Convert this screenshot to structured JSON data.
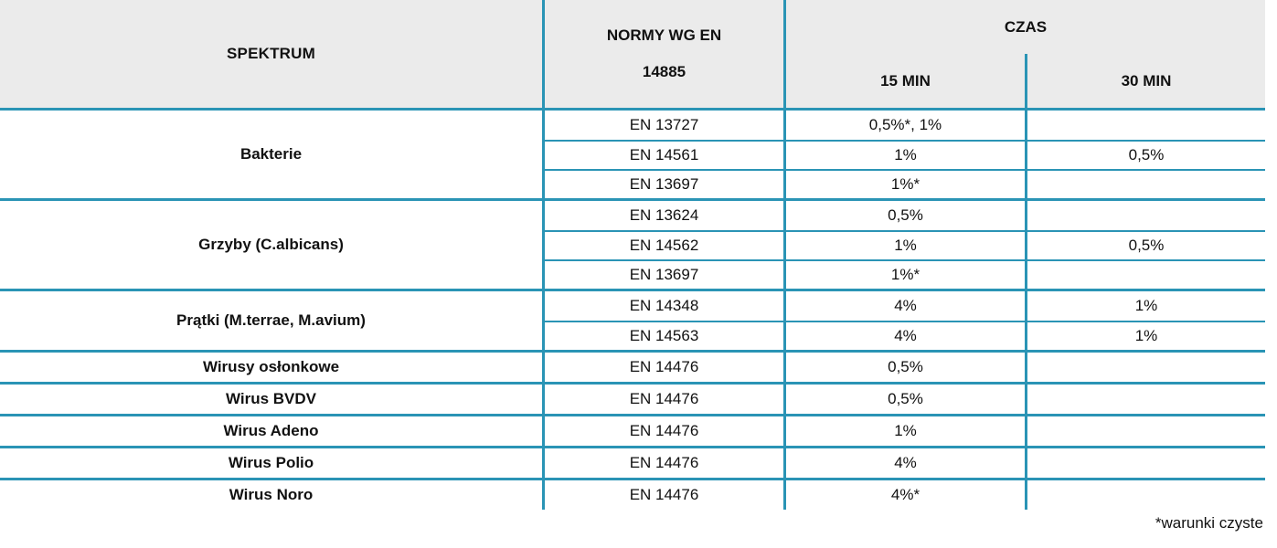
{
  "colors": {
    "accent": "#2A94B5",
    "header_bg": "#EBEBEB",
    "text": "#111111"
  },
  "header": {
    "spektrum": "SPEKTRUM",
    "normy_line1": "NORMY WG EN",
    "normy_line2": "14885",
    "czas": "CZAS",
    "min15": "15 MIN",
    "min30": "30 MIN"
  },
  "table": {
    "sections": [
      {
        "name": "Bakterie",
        "rows": [
          {
            "norm": "EN 13727",
            "min15": "0,5%*, 1%",
            "min30": ""
          },
          {
            "norm": "EN 14561",
            "min15": "1%",
            "min30": "0,5%"
          },
          {
            "norm": "EN 13697",
            "min15": "1%*",
            "min30": ""
          }
        ]
      },
      {
        "name": "Grzyby (C.albicans)",
        "rows": [
          {
            "norm": "EN 13624",
            "min15": "0,5%",
            "min30": ""
          },
          {
            "norm": "EN 14562",
            "min15": "1%",
            "min30": "0,5%"
          },
          {
            "norm": "EN 13697",
            "min15": "1%*",
            "min30": ""
          }
        ]
      },
      {
        "name": "Prątki  (M.terrae, M.avium)",
        "rows": [
          {
            "norm": "EN 14348",
            "min15": "4%",
            "min30": "1%"
          },
          {
            "norm": "EN 14563",
            "min15": "4%",
            "min30": "1%"
          }
        ]
      },
      {
        "name": "Wirusy osłonkowe",
        "rows": [
          {
            "norm": "EN 14476",
            "min15": "0,5%",
            "min30": ""
          }
        ]
      },
      {
        "name": "Wirus BVDV",
        "rows": [
          {
            "norm": "EN 14476",
            "min15": "0,5%",
            "min30": ""
          }
        ]
      },
      {
        "name": "Wirus Adeno",
        "rows": [
          {
            "norm": "EN 14476",
            "min15": "1%",
            "min30": ""
          }
        ]
      },
      {
        "name": "Wirus Polio",
        "rows": [
          {
            "norm": "EN 14476",
            "min15": "4%",
            "min30": ""
          }
        ]
      },
      {
        "name": "Wirus Noro",
        "rows": [
          {
            "norm": "EN 14476",
            "min15": "4%*",
            "min30": ""
          }
        ]
      }
    ]
  },
  "footnote": "*warunki czyste"
}
